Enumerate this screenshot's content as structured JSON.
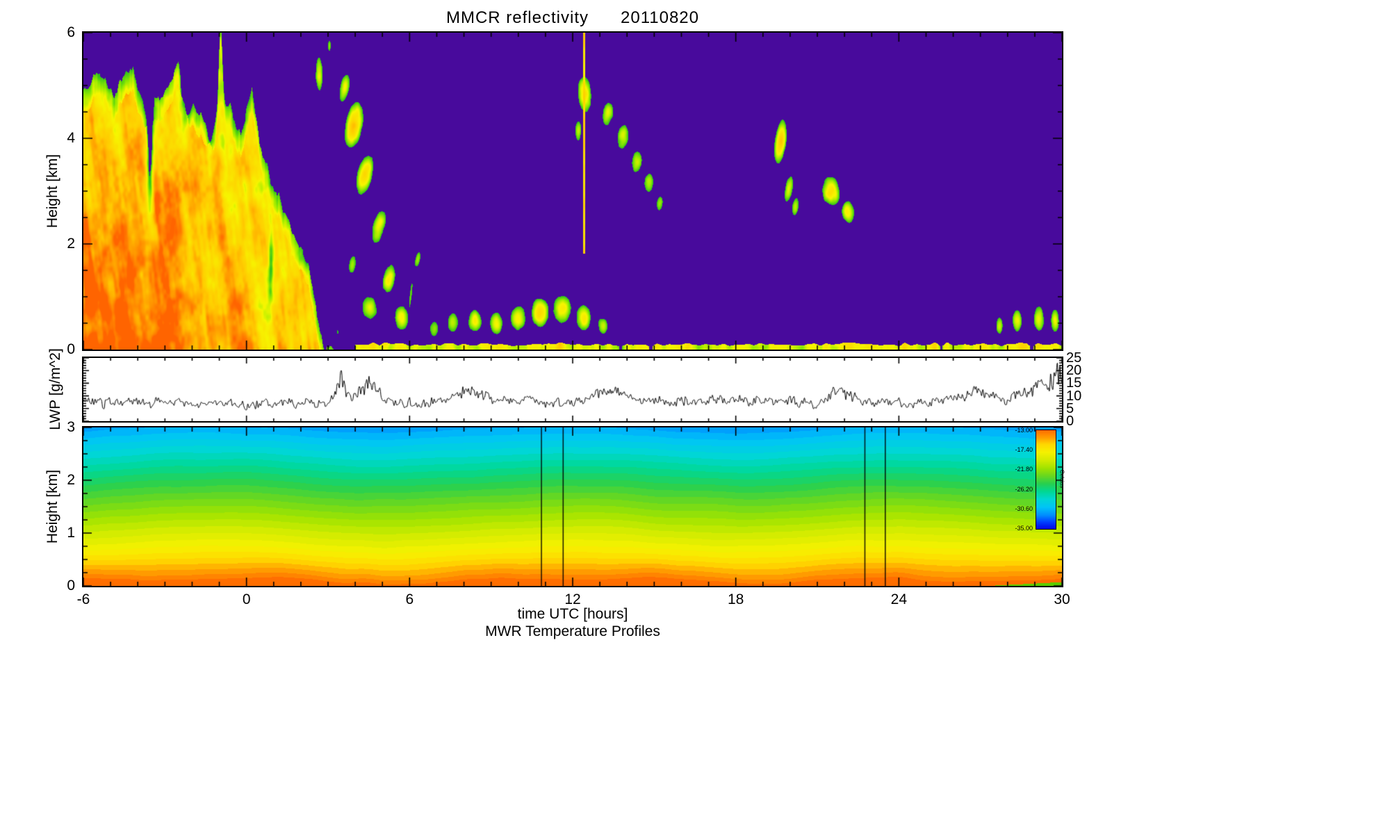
{
  "title": "MMCR reflectivity      20110820",
  "footer": {
    "xlabel": "time UTC [hours]",
    "subtitle": "MWR Temperature Profiles"
  },
  "chart_data": [
    {
      "id": "mmcr-reflectivity",
      "type": "heatmap",
      "title": "MMCR reflectivity",
      "date": "20110820",
      "ylabel": "Height [km]",
      "ylim": [
        0,
        6
      ],
      "yticks": [
        0,
        2,
        4,
        6
      ],
      "xlim": [
        -6,
        30
      ],
      "xticks": [
        -6,
        0,
        6,
        12,
        18,
        24,
        30
      ],
      "background_color": "#480a9c",
      "colormap": "purple(clear) -> green(weak echo) -> yellow(moderate) -> orange(strong)",
      "frontal_system": {
        "description": "deep precipitating cloud system with fall streaks and orange cores from 0 to ~5.5 km",
        "t_range": [
          -6,
          3.2
        ],
        "top_profile": [
          [
            -6.2,
            4.7
          ],
          [
            -5.4,
            5.2
          ],
          [
            -4.8,
            4.85
          ],
          [
            -4.2,
            5.3
          ],
          [
            -3.6,
            4.55
          ],
          [
            -3.0,
            5.0
          ],
          [
            -2.5,
            5.3
          ],
          [
            -2.0,
            4.65
          ],
          [
            -1.5,
            4.15
          ],
          [
            -1.0,
            4.4
          ],
          [
            -0.6,
            4.6
          ],
          [
            -0.2,
            4.05
          ],
          [
            0.2,
            4.85
          ],
          [
            0.6,
            3.6
          ],
          [
            1.0,
            3.0
          ],
          [
            1.4,
            2.6
          ],
          [
            1.9,
            2.1
          ],
          [
            2.3,
            1.5
          ],
          [
            2.6,
            0.6
          ],
          [
            2.85,
            0.0
          ]
        ],
        "tower": {
          "t": -0.95,
          "amp": 1.65,
          "width": 0.1
        },
        "holes": [
          [
            -3.55,
            3.9,
            0.13,
            1.3,
            0.5
          ],
          [
            -2.25,
            5.0,
            0.16,
            0.8,
            0.45
          ],
          [
            -1.35,
            4.6,
            0.1,
            0.9,
            0.4
          ],
          [
            0.9,
            1.6,
            0.1,
            0.7,
            0.3
          ]
        ]
      },
      "cloud_blobs": [
        [
          2.68,
          5.2,
          0.3,
          0.75,
          0,
          0.62
        ],
        [
          3.05,
          5.75,
          0.16,
          0.3,
          0,
          0.5
        ],
        [
          3.35,
          0.35,
          0.25,
          0.3,
          0,
          0.46
        ],
        [
          3.6,
          4.95,
          0.38,
          0.65,
          -25,
          0.6
        ],
        [
          3.95,
          4.25,
          0.55,
          0.85,
          -30,
          0.78
        ],
        [
          4.35,
          3.3,
          0.5,
          0.8,
          -35,
          0.72
        ],
        [
          4.85,
          2.3,
          0.45,
          0.75,
          -35,
          0.66
        ],
        [
          5.25,
          1.35,
          0.45,
          0.65,
          -30,
          0.62
        ],
        [
          5.7,
          0.6,
          0.55,
          0.5,
          -20,
          0.62
        ],
        [
          4.55,
          0.8,
          0.7,
          0.55,
          -10,
          0.58
        ],
        [
          3.9,
          1.6,
          0.35,
          0.5,
          -25,
          0.5
        ],
        [
          6.05,
          1.05,
          0.14,
          0.85,
          -12,
          0.5
        ],
        [
          6.3,
          1.7,
          0.25,
          0.45,
          -30,
          0.48
        ],
        [
          6.9,
          0.4,
          0.45,
          0.42,
          0,
          0.52
        ],
        [
          7.6,
          0.5,
          0.5,
          0.45,
          0,
          0.56
        ],
        [
          8.4,
          0.55,
          0.55,
          0.48,
          0,
          0.6
        ],
        [
          9.2,
          0.5,
          0.55,
          0.45,
          0,
          0.6
        ],
        [
          10.0,
          0.6,
          0.6,
          0.5,
          0,
          0.63
        ],
        [
          10.8,
          0.7,
          0.65,
          0.55,
          0,
          0.68
        ],
        [
          11.6,
          0.75,
          0.7,
          0.58,
          0,
          0.66
        ],
        [
          12.4,
          0.6,
          0.6,
          0.5,
          0,
          0.62
        ],
        [
          13.1,
          0.45,
          0.5,
          0.4,
          0,
          0.55
        ],
        [
          12.45,
          4.85,
          0.5,
          0.8,
          10,
          0.66
        ],
        [
          12.2,
          4.15,
          0.3,
          0.5,
          0,
          0.55
        ],
        [
          13.3,
          4.45,
          0.45,
          0.55,
          -35,
          0.6
        ],
        [
          13.85,
          4.0,
          0.45,
          0.55,
          -35,
          0.62
        ],
        [
          14.35,
          3.55,
          0.42,
          0.5,
          -35,
          0.6
        ],
        [
          14.8,
          3.15,
          0.4,
          0.45,
          -35,
          0.58
        ],
        [
          15.2,
          2.75,
          0.33,
          0.4,
          -35,
          0.52
        ],
        [
          19.65,
          3.95,
          0.4,
          0.85,
          -15,
          0.7
        ],
        [
          19.95,
          3.05,
          0.33,
          0.6,
          -20,
          0.62
        ],
        [
          20.2,
          2.7,
          0.3,
          0.45,
          -20,
          0.56
        ],
        [
          21.5,
          3.0,
          0.65,
          0.55,
          -15,
          0.72
        ],
        [
          22.15,
          2.6,
          0.5,
          0.45,
          -15,
          0.64
        ],
        [
          27.7,
          0.45,
          0.3,
          0.42,
          0,
          0.55
        ],
        [
          28.35,
          0.55,
          0.38,
          0.48,
          0,
          0.6
        ],
        [
          29.15,
          0.6,
          0.42,
          0.52,
          0,
          0.62
        ],
        [
          29.75,
          0.55,
          0.35,
          0.5,
          0,
          0.6
        ]
      ],
      "vertical_line": {
        "t": 12.42,
        "h_range": [
          1.82,
          6
        ],
        "note": "narrow yellow artifact column"
      },
      "ground_clutter_strip": {
        "t_start": 4.0,
        "t_end": 30,
        "max_height_km": 0.13
      }
    },
    {
      "id": "lwp",
      "type": "line",
      "ylabel": "LWP [g/m^2]",
      "ylim": [
        0,
        25
      ],
      "yticks": [
        0,
        5,
        10,
        15,
        20,
        25
      ],
      "xlim": [
        -6,
        30
      ],
      "line_color": "#000000",
      "series": [
        {
          "name": "LWP",
          "baseline_g_m2": 7.6,
          "noise_band": [
            5,
            13
          ],
          "peaks": [
            [
              3.45,
              20,
              0.18
            ],
            [
              4.5,
              16,
              0.3
            ],
            [
              8.3,
              13,
              0.45
            ],
            [
              13.5,
              12,
              0.5
            ],
            [
              21.8,
              12,
              0.4
            ],
            [
              26.8,
              12,
              0.5
            ],
            [
              29.3,
              15,
              0.6
            ],
            [
              29.9,
              19,
              0.2
            ]
          ]
        }
      ]
    },
    {
      "id": "mwr-temperature",
      "type": "heatmap",
      "title": "MWR Temperature Profiles",
      "xlabel": "time UTC [hours]",
      "ylabel": "Height [km]",
      "ylim": [
        0,
        3
      ],
      "yticks": [
        0,
        1,
        2,
        3
      ],
      "xlim": [
        -6,
        30
      ],
      "xticks": [
        -6,
        0,
        6,
        12,
        18,
        24,
        30
      ],
      "colorbar": {
        "label": "Celcius",
        "tick_labels": [
          "-13.00",
          "-17.40",
          "-21.80",
          "-26.20",
          "-30.60",
          "-35.00"
        ],
        "max_c": -13.0,
        "min_c": -35.0
      },
      "profile_note": "smooth layered temperature field: orange (~-13C) at surface grading to cyan-blue (~-30C) at 3 km, wavy filled contours",
      "data_gap_lines_t": [
        10.85,
        11.65,
        22.75,
        23.5
      ]
    }
  ]
}
